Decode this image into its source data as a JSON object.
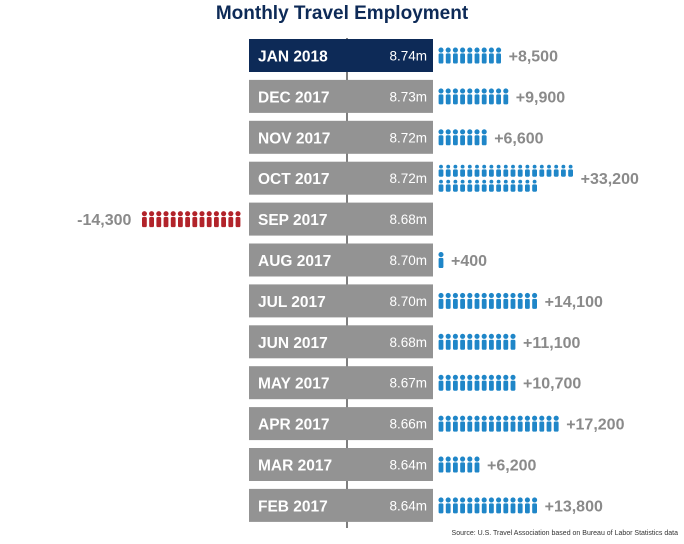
{
  "chart_data": {
    "type": "bar",
    "title": "Monthly Travel Employment",
    "source": "Source: U.S. Travel Association based on Bureau of Labor Statistics data",
    "colors": {
      "highlight": "#0d2a57",
      "month_bar": "#939393",
      "gain": "#1f86c8",
      "loss": "#b2232a",
      "change_text": "#8a8a8a"
    },
    "rows": [
      {
        "month": "JAN 2018",
        "total": "8.74m",
        "change": 8500,
        "change_label": "+8,500",
        "highlight": true
      },
      {
        "month": "DEC 2017",
        "total": "8.73m",
        "change": 9900,
        "change_label": "+9,900"
      },
      {
        "month": "NOV 2017",
        "total": "8.72m",
        "change": 6600,
        "change_label": "+6,600"
      },
      {
        "month": "OCT 2017",
        "total": "8.72m",
        "change": 33200,
        "change_label": "+33,200"
      },
      {
        "month": "SEP 2017",
        "total": "8.68m",
        "change": -14300,
        "change_label": "-14,300"
      },
      {
        "month": "AUG 2017",
        "total": "8.70m",
        "change": 400,
        "change_label": "+400"
      },
      {
        "month": "JUL 2017",
        "total": "8.70m",
        "change": 14100,
        "change_label": "+14,100"
      },
      {
        "month": "JUN 2017",
        "total": "8.68m",
        "change": 11100,
        "change_label": "+11,100"
      },
      {
        "month": "MAY 2017",
        "total": "8.67m",
        "change": 10700,
        "change_label": "+10,700"
      },
      {
        "month": "APR 2017",
        "total": "8.66m",
        "change": 17200,
        "change_label": "+17,200"
      },
      {
        "month": "MAR 2017",
        "total": "8.64m",
        "change": 6200,
        "change_label": "+6,200"
      },
      {
        "month": "FEB 2017",
        "total": "8.64m",
        "change": 13800,
        "change_label": "+13,800"
      }
    ]
  }
}
